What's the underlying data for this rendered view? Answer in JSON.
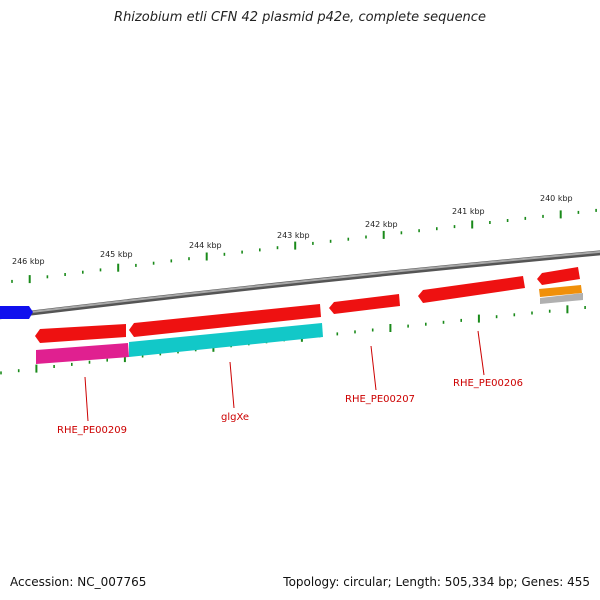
{
  "title": "Rhizobium etli CFN 42 plasmid p42e, complete sequence",
  "footer": {
    "accession": "Accession: NC_007765",
    "summary": "Topology: circular; Length: 505,334 bp; Genes: 455"
  },
  "colors": {
    "backbone": "#808080",
    "tick": "#1a8a1a",
    "gene_red": "#ee1111",
    "gene_magenta": "#e02090",
    "gene_cyan": "#12c8c8",
    "gene_blue": "#1010ee",
    "gene_orange": "#f0900a",
    "gene_grey": "#b0b0b0",
    "label": "#cc0000"
  },
  "scale_labels": [
    "246 kbp",
    "245 kbp",
    "244 kbp",
    "243 kbp",
    "242 kbp",
    "241 kbp",
    "240 kbp"
  ],
  "gene_labels": [
    "RHE_PE00209",
    "glgXe",
    "RHE_PE00207",
    "RHE_PE00206"
  ]
}
